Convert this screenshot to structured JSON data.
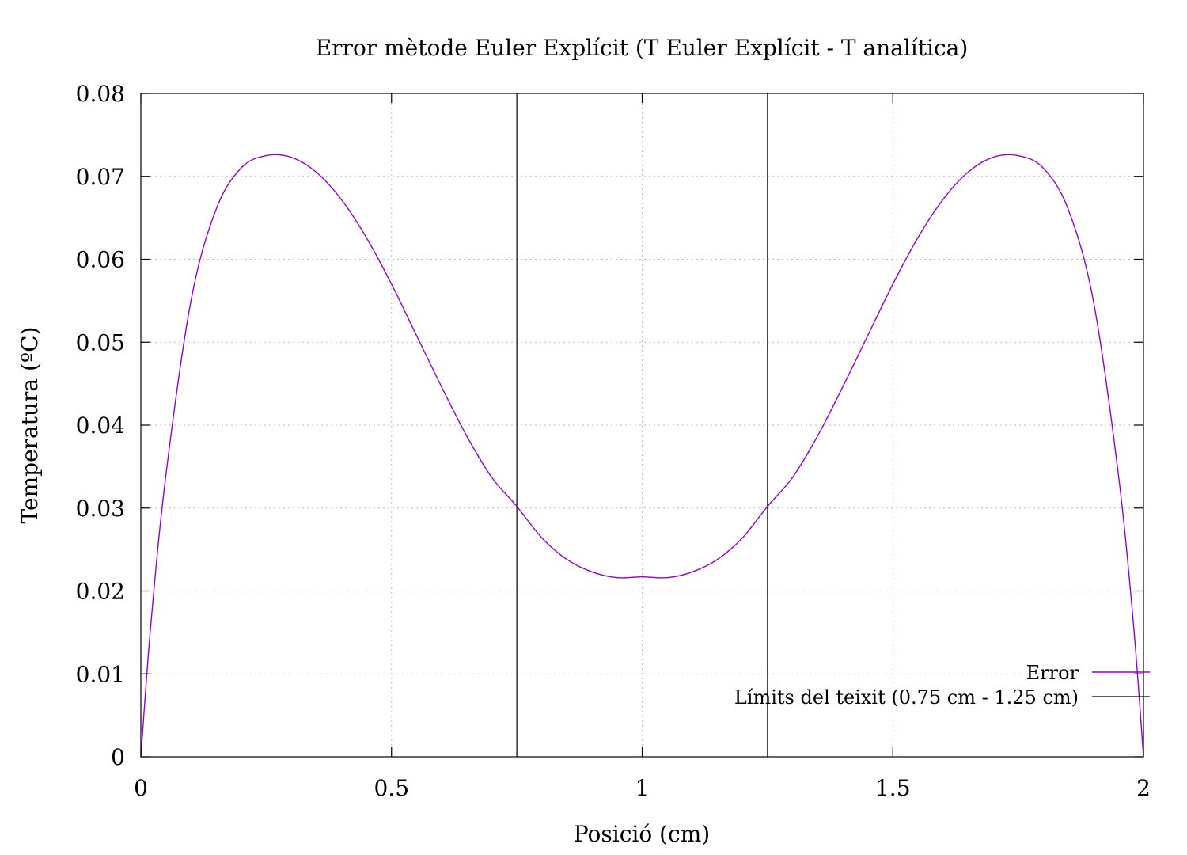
{
  "chart_data": {
    "type": "line",
    "title": "Error mètode Euler Explícit (T Euler Explícit - T analítica)",
    "xlabel": "Posició (cm)",
    "ylabel": "Temperatura (ºC)",
    "xlim": [
      0,
      2
    ],
    "ylim": [
      0,
      0.08
    ],
    "xticks": [
      0,
      0.5,
      1,
      1.5,
      2
    ],
    "xtick_labels": [
      "0",
      "0.5",
      "1",
      "1.5",
      "2"
    ],
    "yticks": [
      0,
      0.01,
      0.02,
      0.03,
      0.04,
      0.05,
      0.06,
      0.07,
      0.08
    ],
    "ytick_labels": [
      "0",
      "0.01",
      "0.02",
      "0.03",
      "0.04",
      "0.05",
      "0.06",
      "0.07",
      "0.08"
    ],
    "grid": true,
    "legend_position": "bottom-right",
    "series": [
      {
        "name": "Error",
        "color": "#9400d3",
        "x": [
          0,
          0.02,
          0.05,
          0.1,
          0.15,
          0.2,
          0.25,
          0.3,
          0.35,
          0.4,
          0.45,
          0.5,
          0.55,
          0.6,
          0.65,
          0.7,
          0.75,
          0.8,
          0.85,
          0.9,
          0.95,
          1.0,
          1.05,
          1.1,
          1.15,
          1.2,
          1.25,
          1.3,
          1.35,
          1.4,
          1.45,
          1.5,
          1.55,
          1.6,
          1.65,
          1.7,
          1.75,
          1.8,
          1.85,
          1.9,
          1.95,
          1.98,
          2.0
        ],
        "y": [
          0,
          0.016,
          0.034,
          0.055,
          0.066,
          0.071,
          0.0725,
          0.0723,
          0.0705,
          0.0672,
          0.0626,
          0.057,
          0.0508,
          0.0446,
          0.0387,
          0.0337,
          0.0302,
          0.0264,
          0.0238,
          0.0223,
          0.0216,
          0.0217,
          0.0216,
          0.0223,
          0.0238,
          0.0264,
          0.0302,
          0.0337,
          0.0387,
          0.0446,
          0.0508,
          0.057,
          0.0626,
          0.0672,
          0.0705,
          0.0723,
          0.0725,
          0.071,
          0.066,
          0.055,
          0.034,
          0.016,
          0
        ]
      },
      {
        "name": "Límits del teixit (0.75 cm - 1.25 cm)",
        "color": "#000000",
        "vlines": [
          0.75,
          1.25
        ]
      }
    ]
  }
}
